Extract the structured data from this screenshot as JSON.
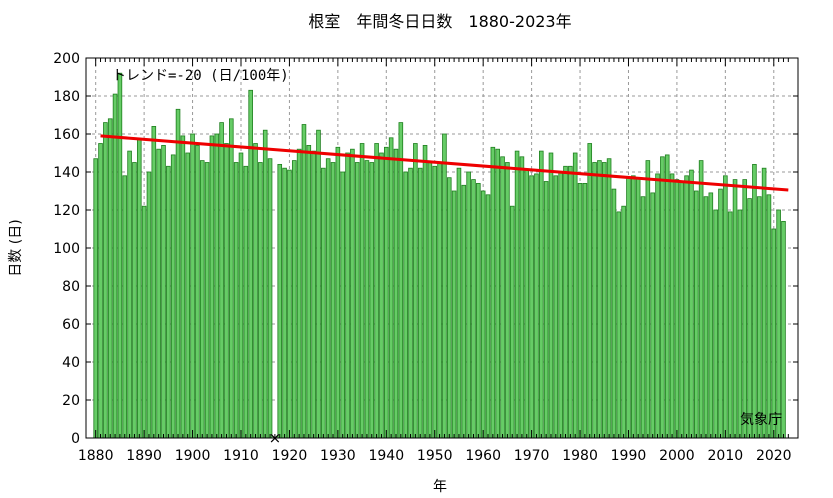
{
  "chart_data": {
    "type": "bar",
    "title": "根室　年間冬日日数　1880-2023年",
    "xlabel": "年",
    "ylabel": "日数 (日)",
    "trend_label": "トレンド=-20 (日/100年)",
    "credit": "気象庁",
    "x_start": 1880,
    "x_end": 2023,
    "xlim": [
      1878,
      2025
    ],
    "ylim": [
      0,
      200
    ],
    "y_ticks": [
      "0",
      "20",
      "40",
      "60",
      "80",
      "100",
      "120",
      "140",
      "160",
      "180",
      "200"
    ],
    "x_ticks": [
      "1880",
      "1890",
      "1900",
      "1910",
      "1920",
      "1930",
      "1940",
      "1950",
      "1960",
      "1970",
      "1980",
      "1990",
      "2000",
      "2010",
      "2020"
    ],
    "missing_marker": "×",
    "missing_year": 1917,
    "trend": {
      "x": [
        1881,
        2023
      ],
      "y": [
        159,
        130.5
      ]
    },
    "grid": true,
    "values": [
      147,
      155,
      166,
      168,
      181,
      192,
      138,
      151,
      145,
      157,
      122,
      140,
      164,
      152,
      154,
      143,
      149,
      173,
      159,
      150,
      160,
      154,
      146,
      145,
      159,
      160,
      166,
      155,
      168,
      145,
      150,
      143,
      183,
      155,
      145,
      162,
      147,
      null,
      144,
      142,
      141,
      146,
      152,
      165,
      154,
      151,
      162,
      142,
      147,
      145,
      153,
      140,
      150,
      152,
      145,
      155,
      146,
      145,
      155,
      150,
      153,
      158,
      152,
      166,
      140,
      142,
      155,
      142,
      154,
      145,
      143,
      145,
      160,
      137,
      130,
      142,
      133,
      140,
      136,
      134,
      130,
      128,
      153,
      152,
      148,
      145,
      122,
      151,
      148,
      141,
      138,
      139,
      151,
      135,
      150,
      138,
      140,
      143,
      143,
      150,
      134,
      134,
      155,
      145,
      146,
      145,
      147,
      131,
      119,
      122,
      137,
      138,
      137,
      127,
      146,
      129,
      139,
      148,
      149,
      139,
      136,
      135,
      138,
      141,
      130,
      146,
      127,
      129,
      120,
      131,
      138,
      119,
      136,
      120,
      136,
      126,
      144,
      127,
      142,
      128,
      110,
      120,
      114,
      null
    ]
  }
}
